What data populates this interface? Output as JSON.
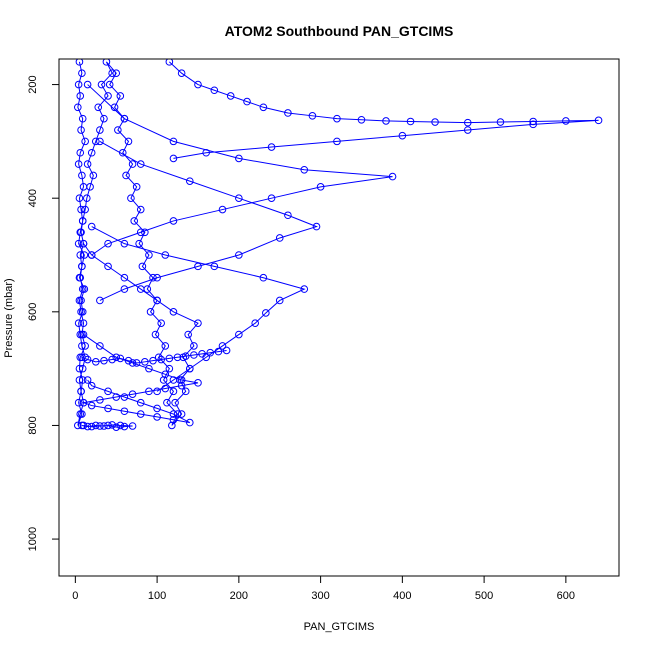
{
  "chart_data": {
    "type": "line",
    "title": "ATOM2 Southbound PAN_GTCIMS",
    "xlabel": "PAN_GTCIMS",
    "ylabel": "Pressure (mbar)",
    "xlim": [
      -20,
      665
    ],
    "ylim": [
      1065,
      155
    ],
    "y_reversed": true,
    "x_ticks": [
      0,
      100,
      200,
      300,
      400,
      500,
      600
    ],
    "y_ticks": [
      200,
      400,
      600,
      800,
      1000
    ],
    "grid": false,
    "legend": "none",
    "series_color": "#0000ff",
    "markers": "open-circle",
    "series": [
      {
        "name": "",
        "x": [
          5,
          8,
          4,
          6,
          3,
          9,
          7,
          12,
          6,
          4,
          8,
          10,
          5,
          7,
          9,
          6,
          4,
          11,
          8,
          6,
          9,
          5,
          7,
          10,
          8,
          12,
          6,
          5,
          9,
          7,
          4,
          8,
          3,
          6,
          10,
          7,
          5,
          9,
          12,
          8,
          6,
          4,
          9,
          7,
          11,
          5,
          8,
          6,
          10,
          7,
          9,
          12,
          14,
          18,
          22,
          15,
          20,
          25,
          30,
          35,
          28,
          40,
          32,
          45,
          38,
          50,
          42,
          55,
          48,
          60,
          52,
          65,
          58,
          70,
          62,
          75,
          68,
          80,
          72,
          85,
          78,
          90,
          82,
          95,
          88,
          100,
          92,
          105,
          98,
          110,
          102,
          115,
          108,
          120,
          112,
          125,
          118,
          130,
          122,
          135,
          128,
          140,
          132,
          145,
          138,
          150,
          120,
          100,
          80,
          60,
          40,
          20,
          10
        ],
        "y": [
          160,
          180,
          200,
          220,
          240,
          260,
          280,
          300,
          320,
          340,
          360,
          380,
          400,
          420,
          440,
          460,
          480,
          500,
          520,
          540,
          560,
          580,
          600,
          620,
          640,
          660,
          680,
          700,
          720,
          740,
          760,
          780,
          800,
          780,
          760,
          740,
          720,
          700,
          680,
          660,
          640,
          620,
          600,
          580,
          560,
          540,
          520,
          500,
          480,
          460,
          440,
          420,
          400,
          380,
          360,
          340,
          320,
          300,
          280,
          260,
          240,
          220,
          200,
          180,
          160,
          180,
          200,
          220,
          240,
          260,
          280,
          300,
          320,
          340,
          360,
          380,
          400,
          420,
          440,
          460,
          480,
          500,
          520,
          540,
          560,
          580,
          600,
          620,
          640,
          660,
          680,
          700,
          720,
          740,
          760,
          780,
          800,
          780,
          760,
          740,
          720,
          700,
          680,
          660,
          640,
          620,
          600,
          580,
          560,
          540,
          520,
          500,
          480
        ]
      },
      {
        "name": "",
        "x": [
          115,
          130,
          150,
          170,
          190,
          210,
          230,
          260,
          290,
          320,
          350,
          380,
          410,
          440,
          480,
          520,
          560,
          600,
          640,
          560,
          480,
          400,
          320,
          240,
          160,
          120
        ],
        "y": [
          160,
          180,
          200,
          210,
          220,
          230,
          240,
          250,
          255,
          260,
          262,
          264,
          265,
          266,
          267,
          266,
          265,
          264,
          263,
          270,
          280,
          290,
          300,
          310,
          320,
          330
        ]
      },
      {
        "name": "",
        "x": [
          15,
          60,
          120,
          200,
          280,
          388,
          300,
          240,
          180,
          120,
          80,
          40,
          20
        ],
        "y": [
          200,
          260,
          300,
          330,
          350,
          362,
          380,
          400,
          420,
          440,
          460,
          480,
          500
        ]
      },
      {
        "name": "",
        "x": [
          30,
          80,
          140,
          200,
          260,
          295,
          250,
          200,
          150,
          100,
          60,
          30
        ],
        "y": [
          300,
          340,
          370,
          400,
          430,
          450,
          470,
          500,
          520,
          540,
          560,
          580
        ]
      },
      {
        "name": "",
        "x": [
          20,
          60,
          110,
          170,
          230,
          280,
          250,
          233,
          220,
          200,
          180,
          160,
          140,
          120,
          100
        ],
        "y": [
          450,
          480,
          500,
          520,
          540,
          560,
          580,
          602,
          620,
          640,
          660,
          680,
          700,
          720,
          740
        ]
      },
      {
        "name": "",
        "x": [
          10,
          30,
          50,
          70,
          90,
          110,
          130,
          150,
          130,
          110,
          90,
          70,
          50,
          30,
          10,
          20,
          40,
          60,
          80,
          100,
          120,
          140,
          120,
          100,
          80,
          60,
          40,
          20,
          15
        ],
        "y": [
          640,
          660,
          680,
          690,
          700,
          710,
          720,
          725,
          730,
          735,
          740,
          745,
          750,
          755,
          760,
          765,
          770,
          775,
          780,
          785,
          790,
          795,
          780,
          770,
          760,
          750,
          740,
          730,
          720
        ]
      },
      {
        "name": "",
        "x": [
          8,
          15,
          25,
          35,
          45,
          55,
          65,
          75,
          85,
          95,
          105,
          115,
          125,
          135,
          145,
          155,
          165,
          175,
          185
        ],
        "y": [
          680,
          684,
          688,
          686,
          684,
          682,
          686,
          690,
          688,
          686,
          684,
          682,
          680,
          678,
          676,
          674,
          672,
          670,
          668
        ]
      },
      {
        "name": "",
        "x": [
          10,
          20,
          30,
          40,
          50,
          60,
          70,
          55,
          45,
          35,
          25,
          15,
          8
        ],
        "y": [
          800,
          802,
          801,
          800,
          803,
          802,
          801,
          800,
          799,
          801,
          800,
          802,
          800
        ]
      }
    ]
  }
}
